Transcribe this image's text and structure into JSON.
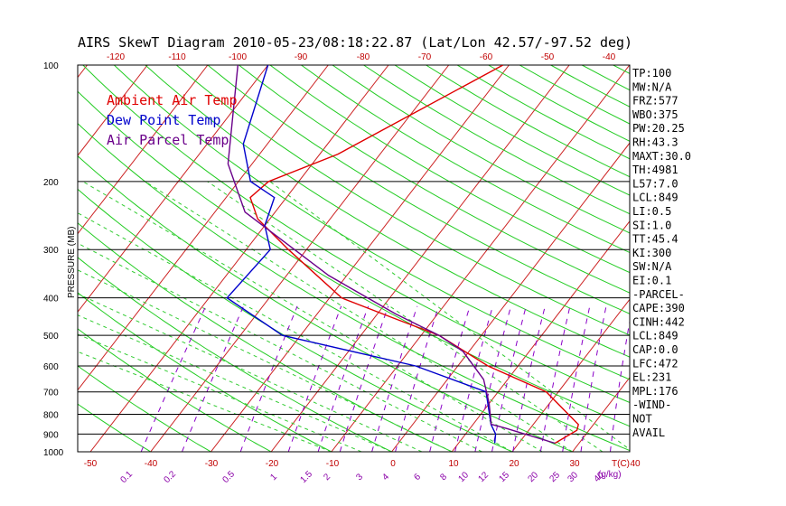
{
  "title": "AIRS SkewT Diagram 2010-05-23/08:18:22.87 (Lat/Lon 42.57/-97.52 deg)",
  "ylabel": "PRESSURE (MB)",
  "legend": [
    {
      "label": "Ambient Air Temp",
      "color": "#e00000"
    },
    {
      "label": "Dew Point Temp",
      "color": "#0000cc"
    },
    {
      "label": "Air Parcel Temp",
      "color": "#6a008a"
    }
  ],
  "top_temp_ticks": [
    "-120",
    "-110",
    "-100",
    "-90",
    "-80",
    "-70",
    "-60",
    "-50",
    "-40"
  ],
  "bottom_temp_ticks": [
    "-50",
    "-40",
    "-30",
    "-20",
    "-10",
    "0",
    "10",
    "20",
    "30",
    "40"
  ],
  "bottom_axis_unit": "T(C)",
  "mixing_ratio_ticks": [
    "0.1",
    "0.2",
    "0.5",
    "1",
    "1.5",
    "2",
    "3",
    "4",
    "6",
    "8",
    "10",
    "12",
    "15",
    "20",
    "25",
    "30",
    "40"
  ],
  "mixing_ratio_unit": "(g/kg)",
  "pressure_ticks": [
    "100",
    "200",
    "300",
    "400",
    "500",
    "600",
    "700",
    "800",
    "900",
    "1000"
  ],
  "stats": [
    "TP:100",
    "MW:N/A",
    "FRZ:577",
    "WBO:375",
    "PW:20.25",
    "RH:43.3",
    "MAXT:30.0",
    "TH:4981",
    "L57:7.0",
    "LCL:849",
    "LI:0.5",
    "SI:1.0",
    "TT:45.4",
    "KI:300",
    "SW:N/A",
    "EI:0.1",
    "-PARCEL-",
    "CAPE:390",
    "CINH:442",
    "LCL:849",
    "CAP:0.0",
    "LFC:472",
    "EL:231",
    "MPL:176",
    "-WIND-",
    " NOT",
    " AVAIL"
  ],
  "chart_data": {
    "type": "line",
    "title": "AIRS SkewT Diagram 2010-05-23/08:18:22.87 (Lat/Lon 42.57/-97.52 deg)",
    "xlabel": "T(C)",
    "ylabel": "PRESSURE (MB)",
    "y_scale": "log-pressure",
    "ylim": [
      1000,
      100
    ],
    "series": [
      {
        "name": "Ambient Air Temp",
        "color": "#e00000",
        "x": [
          26,
          28,
          27.5,
          18,
          5,
          -7,
          -17,
          -28,
          -43,
          -52,
          -56,
          -55,
          -47,
          -31
        ],
        "y": [
          950,
          880,
          850,
          700,
          600,
          500,
          450,
          400,
          300,
          250,
          220,
          200,
          170,
          100
        ]
      },
      {
        "name": "Dew Point Temp",
        "color": "#0000cc",
        "x": [
          16,
          15,
          13,
          8,
          -7,
          -33,
          -47,
          -46,
          -50,
          -52,
          -58,
          -64,
          -70
        ],
        "y": [
          950,
          900,
          850,
          700,
          600,
          500,
          400,
          300,
          260,
          220,
          200,
          160,
          100
        ]
      },
      {
        "name": "Air Parcel Temp",
        "color": "#6a008a",
        "x": [
          26,
          16,
          13,
          10,
          6,
          -1,
          -7,
          -17,
          -33,
          -46,
          -55,
          -64,
          -75
        ],
        "y": [
          950,
          870,
          849,
          750,
          650,
          550,
          500,
          440,
          350,
          280,
          240,
          180,
          100
        ]
      }
    ]
  }
}
